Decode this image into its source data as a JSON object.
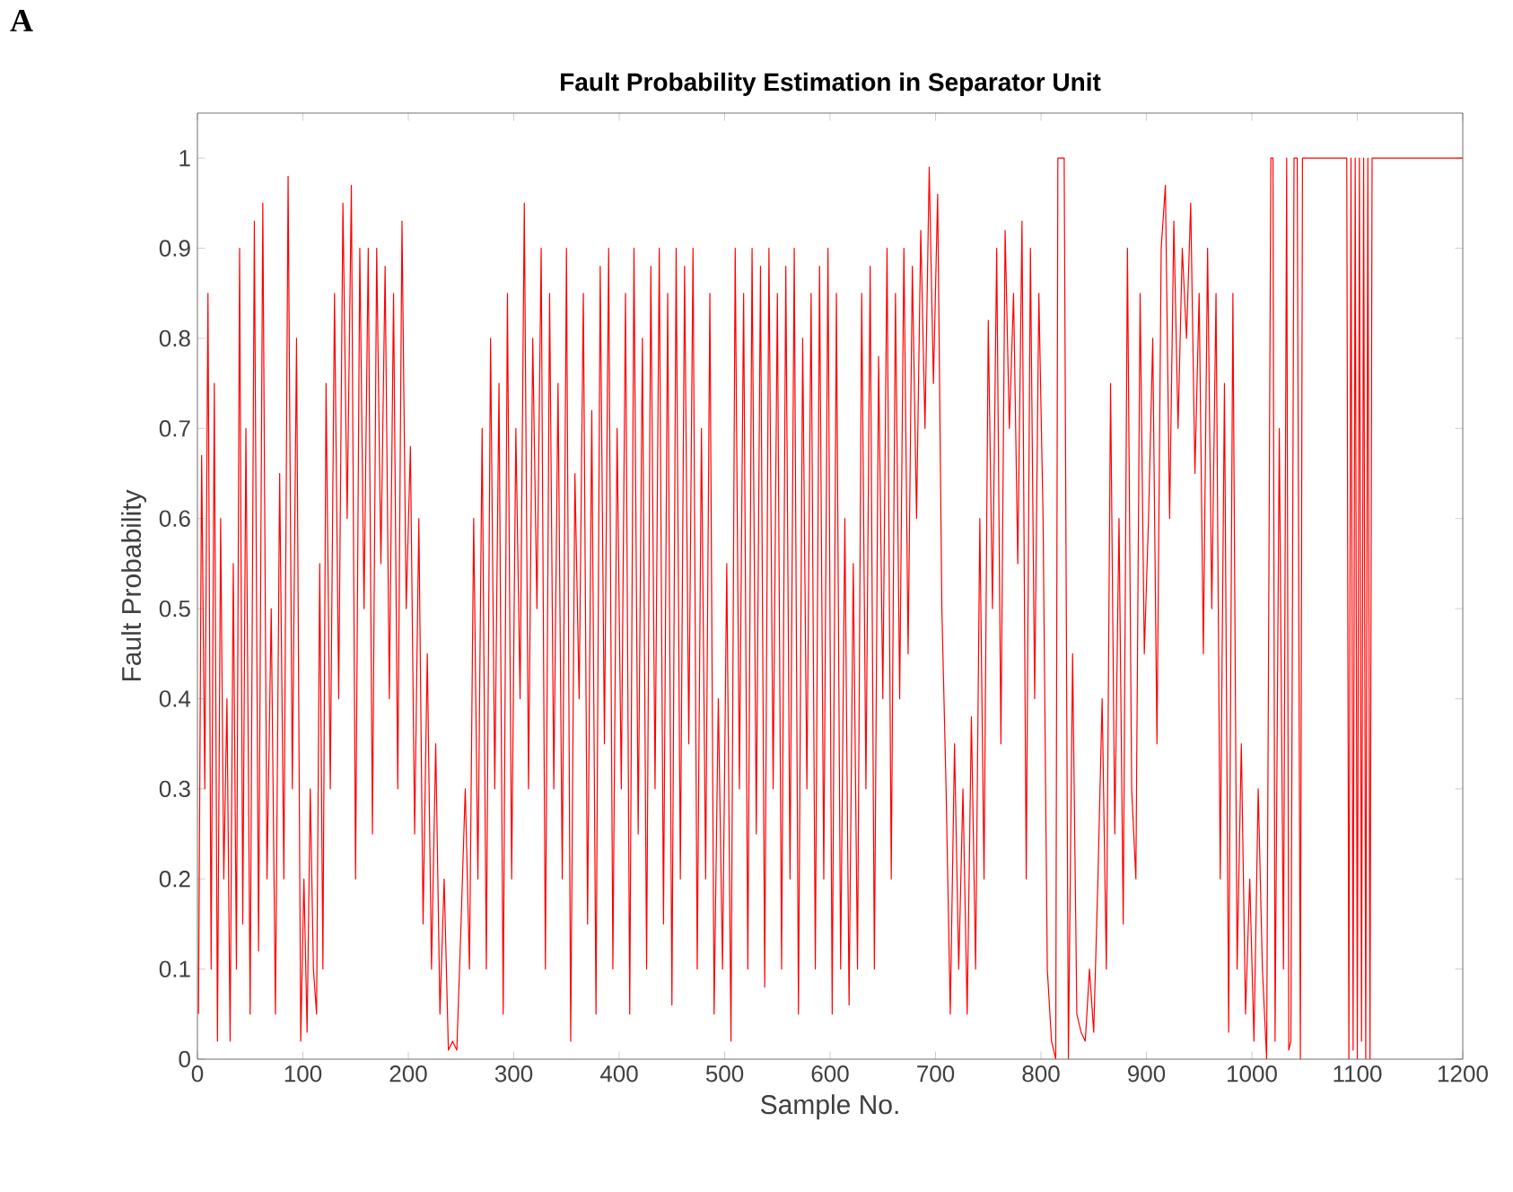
{
  "chart_data": {
    "type": "line",
    "title": "Fault Probability Estimation in Separator Unit",
    "xlabel": "Sample No.",
    "ylabel": "Fault Probability",
    "annotations": [
      "A"
    ],
    "series": [
      {
        "color": "#ff0000",
        "x": [
          1,
          4,
          7,
          10,
          13,
          16,
          19,
          22,
          25,
          28,
          31,
          34,
          37,
          40,
          43,
          46,
          50,
          54,
          58,
          62,
          66,
          70,
          74,
          78,
          82,
          86,
          90,
          94,
          98,
          101,
          104,
          107,
          110,
          113,
          116,
          119,
          122,
          126,
          130,
          134,
          138,
          142,
          146,
          150,
          154,
          158,
          162,
          166,
          170,
          174,
          178,
          182,
          186,
          190,
          194,
          198,
          202,
          206,
          210,
          214,
          218,
          222,
          226,
          230,
          234,
          238,
          242,
          246,
          250,
          254,
          258,
          262,
          266,
          270,
          274,
          278,
          282,
          286,
          290,
          294,
          298,
          302,
          306,
          310,
          314,
          318,
          322,
          326,
          330,
          334,
          338,
          342,
          346,
          350,
          354,
          358,
          362,
          366,
          370,
          374,
          378,
          382,
          386,
          390,
          394,
          398,
          402,
          406,
          410,
          414,
          418,
          422,
          426,
          430,
          434,
          438,
          442,
          446,
          450,
          454,
          458,
          462,
          466,
          470,
          474,
          478,
          482,
          486,
          490,
          494,
          498,
          502,
          506,
          510,
          514,
          518,
          522,
          526,
          530,
          534,
          538,
          542,
          546,
          550,
          554,
          558,
          562,
          566,
          570,
          574,
          578,
          582,
          586,
          590,
          594,
          598,
          602,
          606,
          610,
          614,
          618,
          622,
          626,
          630,
          634,
          638,
          642,
          646,
          650,
          654,
          658,
          662,
          666,
          670,
          674,
          678,
          682,
          686,
          690,
          694,
          698,
          702,
          706,
          710,
          714,
          718,
          722,
          726,
          730,
          734,
          738,
          742,
          746,
          750,
          754,
          758,
          762,
          766,
          770,
          774,
          778,
          782,
          786,
          790,
          794,
          798,
          802,
          806,
          810,
          814,
          816,
          818,
          822,
          826,
          830,
          834,
          838,
          842,
          846,
          850,
          854,
          858,
          862,
          866,
          870,
          874,
          878,
          882,
          886,
          890,
          894,
          898,
          902,
          906,
          910,
          914,
          918,
          922,
          926,
          930,
          934,
          938,
          942,
          946,
          950,
          954,
          958,
          962,
          966,
          970,
          974,
          978,
          982,
          986,
          990,
          994,
          998,
          1002,
          1006,
          1010,
          1014,
          1018,
          1020,
          1022,
          1026,
          1030,
          1033,
          1035,
          1037,
          1040,
          1043,
          1046,
          1048,
          1050,
          1054,
          1090,
          1092,
          1094,
          1096,
          1098,
          1100,
          1102,
          1104,
          1106,
          1108,
          1110,
          1112,
          1114,
          1116,
          1200
        ],
        "values": [
          0.05,
          0.67,
          0.3,
          0.85,
          0.1,
          0.75,
          0.02,
          0.6,
          0.2,
          0.4,
          0.02,
          0.55,
          0.1,
          0.9,
          0.15,
          0.7,
          0.05,
          0.93,
          0.12,
          0.95,
          0.2,
          0.5,
          0.05,
          0.65,
          0.2,
          0.98,
          0.3,
          0.8,
          0.02,
          0.2,
          0.03,
          0.3,
          0.1,
          0.05,
          0.55,
          0.1,
          0.75,
          0.3,
          0.85,
          0.4,
          0.95,
          0.6,
          0.97,
          0.2,
          0.9,
          0.5,
          0.9,
          0.25,
          0.9,
          0.55,
          0.88,
          0.4,
          0.85,
          0.3,
          0.93,
          0.5,
          0.68,
          0.25,
          0.6,
          0.15,
          0.45,
          0.1,
          0.35,
          0.05,
          0.2,
          0.01,
          0.02,
          0.01,
          0.15,
          0.3,
          0.1,
          0.6,
          0.2,
          0.7,
          0.1,
          0.8,
          0.3,
          0.75,
          0.05,
          0.85,
          0.2,
          0.7,
          0.4,
          0.95,
          0.3,
          0.8,
          0.5,
          0.9,
          0.1,
          0.85,
          0.3,
          0.75,
          0.2,
          0.9,
          0.02,
          0.65,
          0.4,
          0.85,
          0.15,
          0.72,
          0.05,
          0.88,
          0.35,
          0.9,
          0.1,
          0.7,
          0.3,
          0.85,
          0.05,
          0.9,
          0.25,
          0.8,
          0.1,
          0.88,
          0.3,
          0.9,
          0.15,
          0.85,
          0.06,
          0.9,
          0.2,
          0.88,
          0.35,
          0.9,
          0.1,
          0.7,
          0.2,
          0.85,
          0.05,
          0.4,
          0.1,
          0.55,
          0.02,
          0.9,
          0.3,
          0.85,
          0.1,
          0.9,
          0.25,
          0.88,
          0.08,
          0.9,
          0.3,
          0.85,
          0.1,
          0.88,
          0.2,
          0.9,
          0.05,
          0.8,
          0.3,
          0.85,
          0.1,
          0.88,
          0.2,
          0.9,
          0.05,
          0.85,
          0.1,
          0.6,
          0.06,
          0.55,
          0.1,
          0.85,
          0.3,
          0.88,
          0.1,
          0.78,
          0.4,
          0.9,
          0.2,
          0.85,
          0.4,
          0.9,
          0.45,
          0.88,
          0.6,
          0.92,
          0.7,
          0.99,
          0.75,
          0.96,
          0.5,
          0.3,
          0.05,
          0.35,
          0.1,
          0.3,
          0.05,
          0.38,
          0.1,
          0.6,
          0.2,
          0.82,
          0.5,
          0.9,
          0.35,
          0.92,
          0.7,
          0.85,
          0.55,
          0.93,
          0.2,
          0.9,
          0.4,
          0.85,
          0.6,
          0.1,
          0.02,
          0.0,
          1,
          1,
          1,
          0.0,
          0.45,
          0.05,
          0.03,
          0.02,
          0.1,
          0.03,
          0.2,
          0.4,
          0.1,
          0.75,
          0.25,
          0.6,
          0.15,
          0.9,
          0.3,
          0.2,
          0.85,
          0.45,
          0.6,
          0.8,
          0.35,
          0.9,
          0.97,
          0.6,
          0.93,
          0.7,
          0.9,
          0.8,
          0.95,
          0.65,
          0.85,
          0.45,
          0.9,
          0.5,
          0.85,
          0.2,
          0.75,
          0.03,
          0.85,
          0.1,
          0.35,
          0.05,
          0.2,
          0.02,
          0.3,
          0.1,
          0.0,
          1,
          1,
          0.02,
          0.7,
          0.1,
          1,
          0.01,
          0.02,
          1,
          1,
          0.0,
          1,
          1,
          1,
          1,
          0.0,
          1,
          0.01,
          1,
          0.0,
          1,
          0.02,
          1,
          0.0,
          1,
          0.0,
          1,
          1,
          1
        ]
      }
    ],
    "xlim": [
      0,
      1200
    ],
    "ylim": [
      0,
      1.05
    ],
    "xticks": [
      0,
      100,
      200,
      300,
      400,
      500,
      600,
      700,
      800,
      900,
      1000,
      1100,
      1200
    ],
    "yticks": [
      0,
      0.1,
      0.2,
      0.3,
      0.4,
      0.5,
      0.6,
      0.7,
      0.8,
      0.9,
      1
    ],
    "grid": false,
    "marker": "none",
    "line_style": "solid"
  }
}
